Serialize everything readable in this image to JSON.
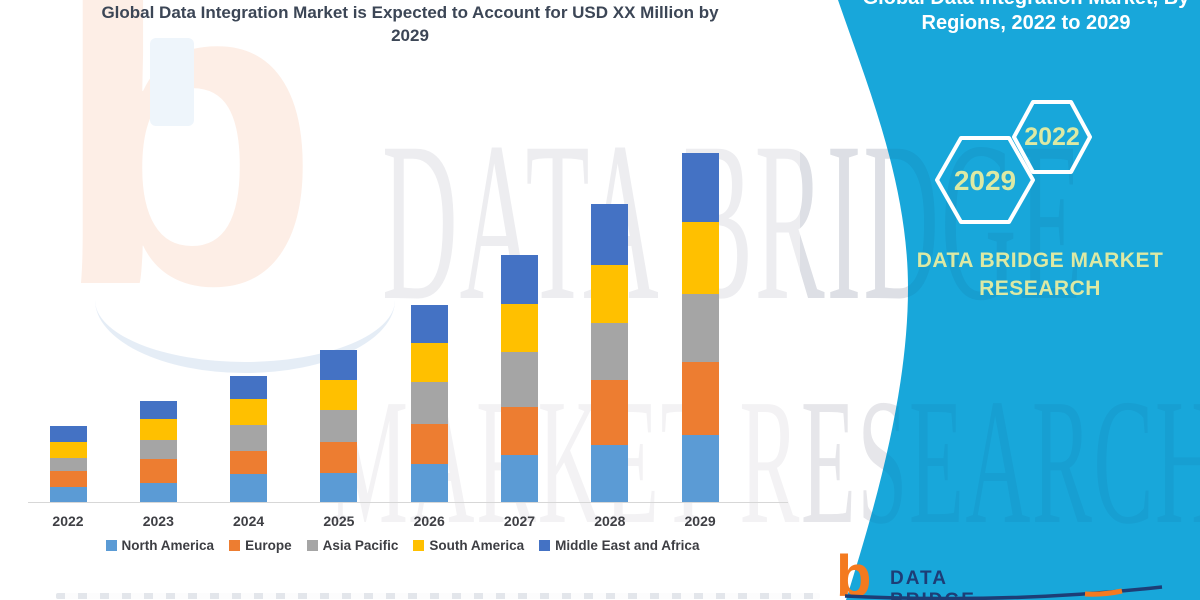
{
  "title": {
    "line1": "Global Data Integration Market is Expected to Account for USD XX Million by",
    "line2": "2029"
  },
  "panel": {
    "heading_line1": "Global Data Integration Market, By",
    "heading_line2": "Regions, 2022 to 2029",
    "hexagon_large_label": "2029",
    "hexagon_small_label": "2022",
    "brand_line1": "DATA BRIDGE MARKET",
    "brand_line2": "RESEARCH",
    "panel_color": "#18a7da",
    "hex_text_color": "#dce9a4"
  },
  "watermark": {
    "row1": "DATA BRIDGE",
    "row2": "MARKET RESEARCH"
  },
  "logo": {
    "b_glyph": "b",
    "wordmark": "DATA BRIDGE",
    "orange": "#f47a1f",
    "navy": "#1d3d76"
  },
  "chart_data": {
    "type": "bar",
    "stacked": true,
    "title": "Global Data Integration Market is Expected to Account for USD XX Million by 2029",
    "xlabel": "",
    "ylabel": "",
    "units": "relative height (no value axis shown in chart; values estimated from bar pixel heights)",
    "grid": false,
    "legend_position": "bottom",
    "categories": [
      "2022",
      "2023",
      "2024",
      "2025",
      "2026",
      "2027",
      "2028",
      "2029"
    ],
    "series": [
      {
        "name": "North America",
        "color": "#5B9BD5",
        "values": [
          15,
          19,
          28,
          29,
          38,
          47,
          57,
          67
        ]
      },
      {
        "name": "Europe",
        "color": "#ED7D31",
        "values": [
          16,
          24,
          23,
          31,
          40,
          48,
          65,
          73
        ]
      },
      {
        "name": "Asia Pacific",
        "color": "#A5A5A5",
        "values": [
          13,
          19,
          26,
          32,
          42,
          55,
          57,
          68
        ]
      },
      {
        "name": "South America",
        "color": "#FFC000",
        "values": [
          16,
          21,
          26,
          30,
          39,
          48,
          58,
          72
        ]
      },
      {
        "name": "Middle East and Africa",
        "color": "#4472C4",
        "values": [
          16,
          18,
          23,
          30,
          38,
          49,
          61,
          69
        ]
      }
    ],
    "totals": [
      76,
      101,
      126,
      152,
      197,
      247,
      298,
      349
    ]
  }
}
